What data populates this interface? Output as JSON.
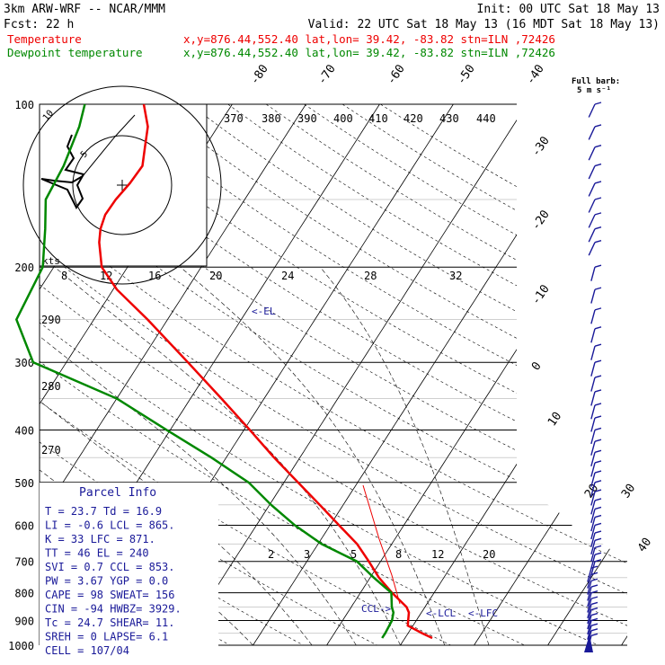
{
  "header": {
    "line1_left": "3km ARW-WRF -- NCAR/MMM",
    "line1_right": "Init: 00 UTC Sat 18 May 13",
    "line2_fcst": "Fcst:   22 h",
    "line2_valid": "Valid: 22 UTC Sat 18 May 13 (16 MDT Sat 18 May 13)",
    "legend": [
      {
        "label": "Temperature",
        "info": "x,y=876.44,552.40   lat,lon= 39.42, -83.82  stn=ILN ,72426",
        "color": "#ee0000"
      },
      {
        "label": "Dewpoint temperature",
        "info": "x,y=876.44,552.40   lat,lon= 39.42, -83.82  stn=ILN ,72426",
        "color": "#008800"
      }
    ]
  },
  "barb_legend": {
    "line1": "Full barb:",
    "line2": "5 m s⁻¹"
  },
  "hodograph": {
    "rings": [
      "10",
      "5"
    ],
    "units": "kts"
  },
  "parcel_info": {
    "title": "Parcel Info",
    "rows": [
      "T   =   23.7  Td =  16.9",
      "LI  =   -0.6  LCL =  865.",
      "K   =     33  LFC =  871.",
      "TT  =     46  EL  =   240",
      "SVI =    0.7  CCL =  853.",
      "PW  =   3.67  YGP =   0.0",
      "CAPE =    98  SWEAT=  156",
      "CIN  =   -94  HWBZ= 3929.",
      "Tc  =   24.7  SHEAR=  11.",
      "SREH =     0  LAPSE=  6.1",
      "CELL = 107/04"
    ]
  },
  "annotations": {
    "el": "<-EL",
    "ccl": "CCL->",
    "lcl": "<-LCL",
    "lfc": "<-LFC"
  },
  "colors": {
    "temperature": "#ee0000",
    "dewpoint": "#008800",
    "barbs": "#1a1a99",
    "grid": "#000000",
    "info_text": "#1a1a99"
  },
  "chart_data": {
    "type": "line",
    "subtype": "skew-T log-P diagram",
    "y_axis": {
      "label": "",
      "scale": "log",
      "ticks": [
        100,
        200,
        300,
        400,
        500,
        600,
        700,
        800,
        900,
        1000
      ],
      "range": [
        1000,
        100
      ]
    },
    "isotherm_labels": [
      "-80",
      "-70",
      "-60",
      "-50",
      "-40",
      "-30",
      "-20",
      "-10",
      "0",
      "10",
      "20",
      "30",
      "40"
    ],
    "theta_e_labels": [
      "370",
      "380",
      "390",
      "400",
      "410",
      "420",
      "430",
      "440"
    ],
    "theta_labels_low": [
      "290",
      "280",
      "270"
    ],
    "mixing_ratio_top": [
      "8",
      "12",
      "16",
      "20",
      "24",
      "28",
      "32"
    ],
    "mixing_ratio_bottom": [
      "2",
      "3",
      "5",
      "8",
      "12",
      "20"
    ],
    "series": [
      {
        "name": "Temperature",
        "color": "#ee0000",
        "points": [
          [
            970,
            23.7
          ],
          [
            950,
            21.9
          ],
          [
            920,
            19.3
          ],
          [
            900,
            18.9
          ],
          [
            870,
            18.3
          ],
          [
            850,
            17.5
          ],
          [
            800,
            14.3
          ],
          [
            750,
            11.2
          ],
          [
            700,
            8.4
          ],
          [
            650,
            5.3
          ],
          [
            600,
            1.2
          ],
          [
            550,
            -3.2
          ],
          [
            500,
            -8.1
          ],
          [
            450,
            -13.5
          ],
          [
            400,
            -19.2
          ],
          [
            350,
            -25.8
          ],
          [
            300,
            -33.5
          ],
          [
            250,
            -42.7
          ],
          [
            220,
            -49.5
          ],
          [
            200,
            -53.5
          ],
          [
            180,
            -56.0
          ],
          [
            170,
            -57.0
          ],
          [
            160,
            -57.6
          ],
          [
            150,
            -57.5
          ],
          [
            140,
            -57.0
          ],
          [
            130,
            -56.8
          ],
          [
            120,
            -58.1
          ],
          [
            110,
            -59.5
          ],
          [
            100,
            -62.0
          ]
        ]
      },
      {
        "name": "Dewpoint temperature",
        "color": "#008800",
        "points": [
          [
            970,
            16.9
          ],
          [
            950,
            16.9
          ],
          [
            900,
            16.7
          ],
          [
            870,
            16.2
          ],
          [
            850,
            15.5
          ],
          [
            800,
            14.2
          ],
          [
            750,
            10.5
          ],
          [
            700,
            6.8
          ],
          [
            650,
            0.5
          ],
          [
            600,
            -4.8
          ],
          [
            550,
            -9.8
          ],
          [
            500,
            -14.8
          ],
          [
            450,
            -22.0
          ],
          [
            400,
            -30.5
          ],
          [
            350,
            -40.0
          ],
          [
            300,
            -54.5
          ],
          [
            250,
            -60.5
          ],
          [
            200,
            -61.5
          ],
          [
            170,
            -64.5
          ],
          [
            150,
            -67.0
          ],
          [
            130,
            -67.5
          ],
          [
            110,
            -68.8
          ],
          [
            100,
            -70.0
          ]
        ]
      }
    ]
  }
}
